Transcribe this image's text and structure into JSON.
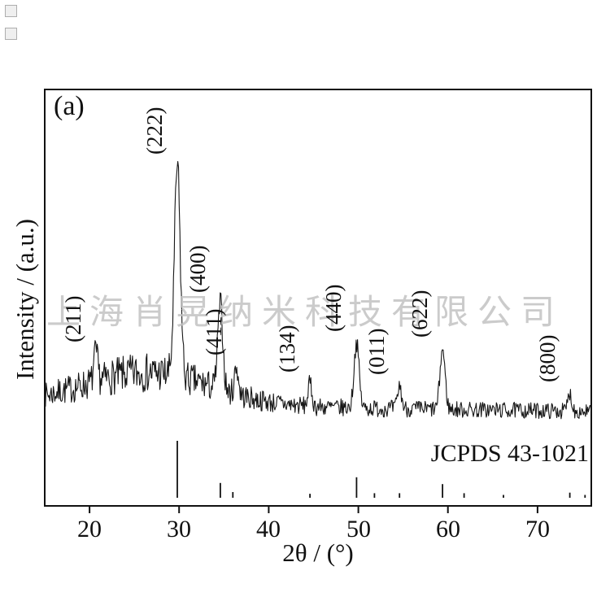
{
  "watermark": "上海肖晃纳米科技有限公司",
  "chart_data": {
    "type": "line",
    "title": "",
    "panel_label": "(a)",
    "xlabel": "2θ / (°)",
    "ylabel": "Intensity / (a.u.)",
    "annotation": "JCPDS 43-1021",
    "xlim": [
      15,
      76
    ],
    "ylim": [
      0,
      110
    ],
    "x_ticks": [
      20,
      30,
      40,
      50,
      60,
      70
    ],
    "grid": false,
    "legend": false,
    "line_color": "#161616",
    "background": {
      "center": 26.5,
      "sigma": 7.0,
      "height": 13,
      "base_left": 6,
      "base_right": 3
    },
    "noise_amplitude": 2.2,
    "seed": 7,
    "peaks": [
      {
        "hkl": "(211)",
        "two_theta": 20.7,
        "height": 11,
        "sigma": 0.22
      },
      {
        "hkl": "(222)",
        "two_theta": 29.8,
        "height": 84,
        "sigma": 0.32
      },
      {
        "hkl": "(400)",
        "two_theta": 34.6,
        "height": 34,
        "sigma": 0.28
      },
      {
        "hkl": "(411)",
        "two_theta": 36.4,
        "height": 11,
        "sigma": 0.22
      },
      {
        "hkl": "(134)",
        "two_theta": 44.6,
        "height": 9,
        "sigma": 0.22
      },
      {
        "hkl": "(440)",
        "two_theta": 49.8,
        "height": 26,
        "sigma": 0.28
      },
      {
        "hkl": "(011)",
        "two_theta": 54.6,
        "height": 9,
        "sigma": 0.22
      },
      {
        "hkl": "(622)",
        "two_theta": 59.4,
        "height": 24,
        "sigma": 0.28
      },
      {
        "hkl": "(800)",
        "two_theta": 73.6,
        "height": 7,
        "sigma": 0.22
      }
    ],
    "reference_sticks": [
      {
        "two_theta": 29.8,
        "rel": 1.0
      },
      {
        "two_theta": 34.6,
        "rel": 0.26
      },
      {
        "two_theta": 36.0,
        "rel": 0.1
      },
      {
        "two_theta": 44.6,
        "rel": 0.07
      },
      {
        "two_theta": 49.8,
        "rel": 0.36
      },
      {
        "two_theta": 51.8,
        "rel": 0.08
      },
      {
        "two_theta": 54.6,
        "rel": 0.08
      },
      {
        "two_theta": 59.4,
        "rel": 0.24
      },
      {
        "two_theta": 61.8,
        "rel": 0.08
      },
      {
        "two_theta": 66.2,
        "rel": 0.05
      },
      {
        "two_theta": 73.6,
        "rel": 0.09
      },
      {
        "two_theta": 75.3,
        "rel": 0.05
      }
    ]
  }
}
